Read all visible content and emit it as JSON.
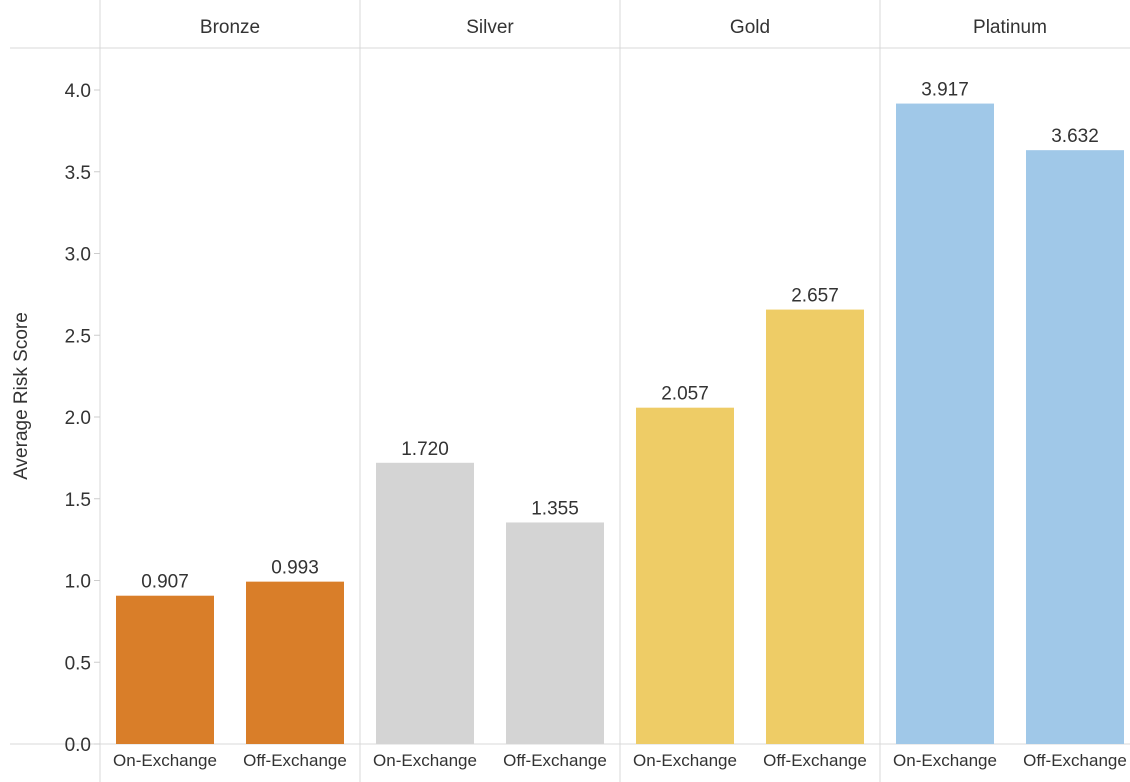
{
  "chart_data": {
    "type": "bar",
    "ylabel": "Average Risk Score",
    "ylim": [
      0,
      4.3
    ],
    "yticks": [
      "0.0",
      "0.5",
      "1.0",
      "1.5",
      "2.0",
      "2.5",
      "3.0",
      "3.5",
      "4.0"
    ],
    "grid": false,
    "panels": [
      {
        "name": "Bronze",
        "color": "#D97E29",
        "categories": [
          "On-Exchange",
          "Off-Exchange"
        ],
        "values": [
          0.907,
          0.993
        ],
        "labels": [
          "0.907",
          "0.993"
        ]
      },
      {
        "name": "Silver",
        "color": "#D4D4D4",
        "categories": [
          "On-Exchange",
          "Off-Exchange"
        ],
        "values": [
          1.72,
          1.355
        ],
        "labels": [
          "1.720",
          "1.355"
        ]
      },
      {
        "name": "Gold",
        "color": "#EECC66",
        "categories": [
          "On-Exchange",
          "Off-Exchange"
        ],
        "values": [
          2.057,
          2.657
        ],
        "labels": [
          "2.057",
          "2.657"
        ]
      },
      {
        "name": "Platinum",
        "color": "#A0C8E8",
        "categories": [
          "On-Exchange",
          "Off-Exchange"
        ],
        "values": [
          3.917,
          3.632
        ],
        "labels": [
          "3.917",
          "3.632"
        ]
      }
    ]
  }
}
